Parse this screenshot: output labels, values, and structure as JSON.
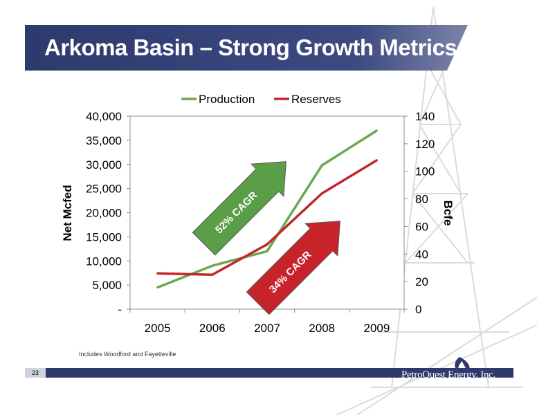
{
  "slide": {
    "title": "Arkoma Basin – Strong Growth Metrics",
    "footnote": "Includes Woodford and Fayetteville",
    "page_number": "23",
    "logo_text": "PetroQuest Energy, Inc."
  },
  "colors": {
    "production": "#6aa84f",
    "reserves": "#c0272d",
    "arrow_green": "#5a9e47",
    "arrow_red": "#c8222a",
    "title_band": "#2e3a6e",
    "footer": "#2e3a6e"
  },
  "chart_data": {
    "type": "line",
    "categories": [
      "2005",
      "2006",
      "2007",
      "2008",
      "2009"
    ],
    "y_left": {
      "label": "Net Mcfed",
      "range": [
        0,
        40000
      ],
      "ticks": [
        "-",
        "5,000",
        "10,000",
        "15,000",
        "20,000",
        "25,000",
        "30,000",
        "35,000",
        "40,000"
      ]
    },
    "y_right": {
      "label": "Bcfe",
      "range": [
        0,
        140
      ],
      "ticks": [
        "0",
        "20",
        "40",
        "60",
        "80",
        "100",
        "120",
        "140"
      ]
    },
    "series": [
      {
        "name": "Production",
        "axis": "left",
        "values": [
          4500,
          9000,
          12000,
          29800,
          37000
        ]
      },
      {
        "name": "Reserves",
        "axis": "right",
        "values": [
          26,
          25,
          47,
          84,
          108
        ]
      }
    ],
    "annotations": [
      "52% CAGR",
      "34% CAGR"
    ],
    "legend_position": "top"
  }
}
